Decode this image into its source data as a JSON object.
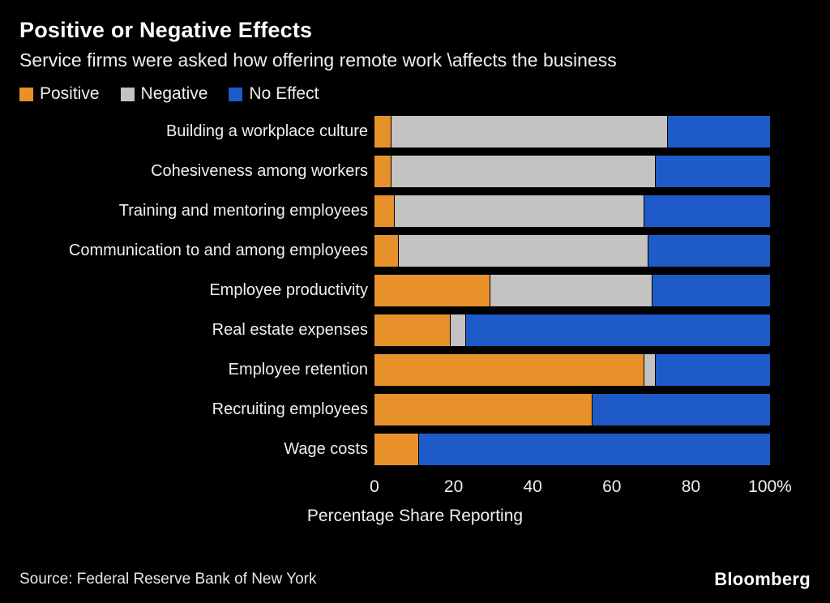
{
  "header": {
    "title": "Positive or Negative Effects",
    "subtitle": "Service firms were asked how offering remote work \\affects the business"
  },
  "legend": [
    {
      "label": "Positive",
      "color": "#E8912B"
    },
    {
      "label": "Negative",
      "color": "#C4C3C1"
    },
    {
      "label": "No Effect",
      "color": "#1E5BC8"
    }
  ],
  "chart_data": {
    "type": "bar",
    "orientation": "horizontal",
    "stacked": true,
    "title": "Positive or Negative Effects",
    "xlabel": "Percentage Share Reporting",
    "ylabel": "",
    "xlim": [
      0,
      100
    ],
    "xticks": [
      "0",
      "20",
      "40",
      "60",
      "80",
      "100%"
    ],
    "legend_position": "top",
    "categories": [
      "Building a workplace culture",
      "Cohesiveness among workers",
      "Training and mentoring employees",
      "Communication to and among employees",
      "Employee productivity",
      "Real estate expenses",
      "Employee retention",
      "Recruiting employees",
      "Wage costs"
    ],
    "series": [
      {
        "name": "Positive",
        "color": "#E8912B",
        "values": [
          4,
          4,
          5,
          6,
          29,
          19,
          68,
          55,
          11
        ]
      },
      {
        "name": "Negative",
        "color": "#C4C3C1",
        "values": [
          70,
          67,
          63,
          63,
          41,
          4,
          3,
          0,
          0
        ]
      },
      {
        "name": "No Effect",
        "color": "#1E5BC8",
        "values": [
          26,
          29,
          32,
          31,
          30,
          77,
          29,
          45,
          89
        ]
      }
    ]
  },
  "footer": {
    "source": "Source: Federal Reserve Bank of New York",
    "brand": "Bloomberg"
  }
}
